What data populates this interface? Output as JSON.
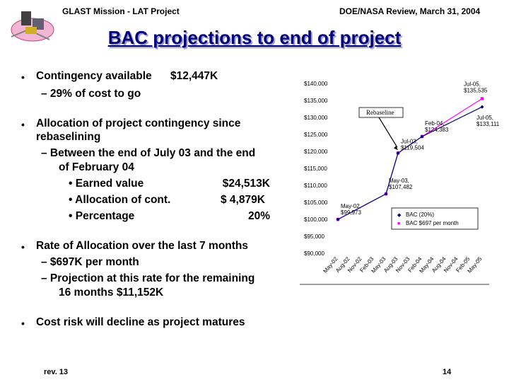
{
  "header": {
    "left": "GLAST Mission - LAT Project",
    "right": "DOE/NASA Review, March 31, 2004"
  },
  "title": "BAC projections to end of project",
  "bullets": {
    "b1": {
      "text": "Contingency available",
      "value": "$12,447K",
      "sub": "– 29% of cost to go"
    },
    "b2": {
      "line1": "Allocation of project contingency since",
      "line2": "rebaselining",
      "sub1": "– Between the end of July 03 and the end",
      "sub2": "of February 04",
      "items": [
        {
          "label": "• Earned value",
          "value": "$24,513K"
        },
        {
          "label": "• Allocation of cont.",
          "value": "$  4,879K"
        },
        {
          "label": "• Percentage",
          "value": "20%"
        }
      ]
    },
    "b3": {
      "line1": "Rate of Allocation over the last 7 months",
      "sub1": "– $697K per month",
      "sub2": "– Projection at this rate for the remaining",
      "sub3": "16 months $11,152K"
    },
    "b4": {
      "text": "Cost risk will decline as project matures"
    },
    "marker": "•"
  },
  "footer": {
    "left": "rev. 13",
    "right": "14"
  },
  "colors": {
    "title": "#000080",
    "bac": "#000080",
    "rate": "#ff00ff"
  },
  "chart_data": {
    "type": "line",
    "title": "",
    "ylim": [
      90000,
      140000
    ],
    "y_ticks": [
      "$90,000",
      "$95,000",
      "$100,000",
      "$105,000",
      "$110,000",
      "$115,000",
      "$120,000",
      "$125,000",
      "$130,000",
      "$135,000",
      "$140,000"
    ],
    "categories": [
      "May-02",
      "Aug-02",
      "Nov-02",
      "Feb-03",
      "May-03",
      "Aug-03",
      "Nov-03",
      "Feb-04",
      "May-04",
      "Aug-04",
      "Nov-04",
      "Feb-05",
      "May-05"
    ],
    "series": [
      {
        "name": "BAC (20%)",
        "points": [
          [
            0,
            99973
          ],
          [
            4,
            107482
          ],
          [
            5,
            119504
          ],
          [
            7,
            124383
          ],
          [
            12,
            133111
          ]
        ]
      },
      {
        "name": "BAC $697 per month",
        "points": [
          [
            0,
            99973
          ],
          [
            4,
            107482
          ],
          [
            5,
            119504
          ],
          [
            7,
            124383
          ],
          [
            12,
            135535
          ]
        ]
      }
    ],
    "labels": [
      {
        "text1": "May-02,",
        "text2": "$99,973",
        "point": [
          0,
          99973
        ]
      },
      {
        "text1": "May-03,",
        "text2": "$107,482",
        "point": [
          4,
          107482
        ]
      },
      {
        "text1": "Jul-03,",
        "text2": "$119,504",
        "point": [
          5,
          119504
        ]
      },
      {
        "text1": "Feb-04,",
        "text2": "$124,383",
        "point": [
          7,
          124383
        ]
      },
      {
        "text1": "Jul-05,",
        "text2": "$135,535",
        "point": [
          12,
          135535
        ]
      },
      {
        "text1": "Jul-05,",
        "text2": "$133,111",
        "point": [
          12,
          133111
        ]
      }
    ],
    "annotation": "Rebaseline",
    "legend": [
      {
        "name": "BAC (20%)",
        "marker": "◆"
      },
      {
        "name": "BAC $697 per month",
        "marker": "■"
      }
    ],
    "legend_position": "bottom-right"
  }
}
